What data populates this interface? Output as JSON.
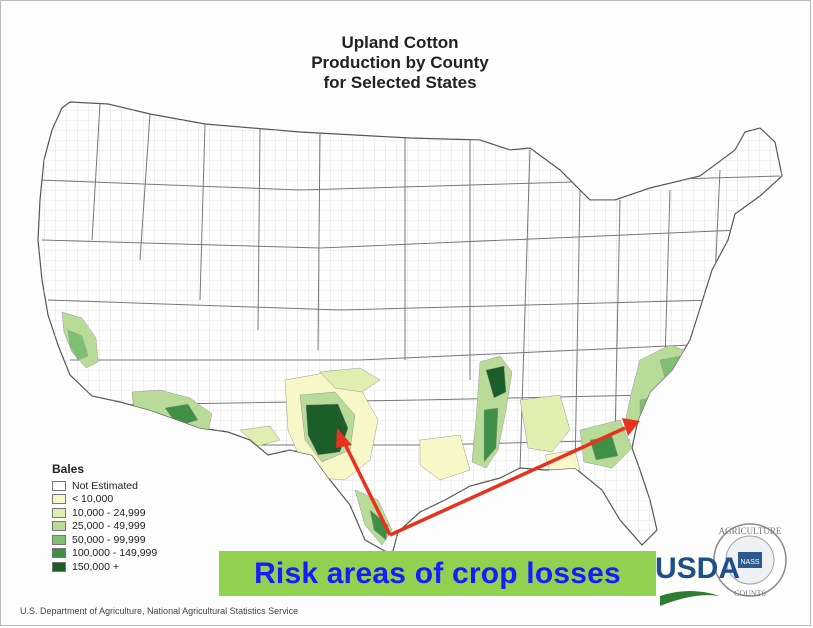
{
  "title": {
    "line1": "Upland Cotton",
    "line2": "Production by County",
    "line3": "for Selected States"
  },
  "legend": {
    "title": "Bales",
    "items": [
      {
        "label": "Not Estimated",
        "color": "#ffffff"
      },
      {
        "label": "< 10,000",
        "color": "#f7f7c8"
      },
      {
        "label": "10,000 -  24,999",
        "color": "#e0eeb0"
      },
      {
        "label": "25,000 -  49,999",
        "color": "#b8dc98"
      },
      {
        "label": "50,000 -  99,999",
        "color": "#7fbf72"
      },
      {
        "label": "100,000 - 149,999",
        "color": "#3f8f46"
      },
      {
        "label": "150,000 +",
        "color": "#1b5e2a"
      }
    ]
  },
  "callout": {
    "text": "Risk areas of crop losses",
    "bg_color": "#92d050",
    "text_color": "#1a1aff",
    "arrow_color": "#e8321e"
  },
  "credit": "U.S. Department of Agriculture, National Agricultural Statistics Service",
  "logo": {
    "text": "USDA",
    "seal_text_top": "AGRICULTURE",
    "seal_text_bottom": "COUNTS",
    "seal_badge": "NASS"
  }
}
